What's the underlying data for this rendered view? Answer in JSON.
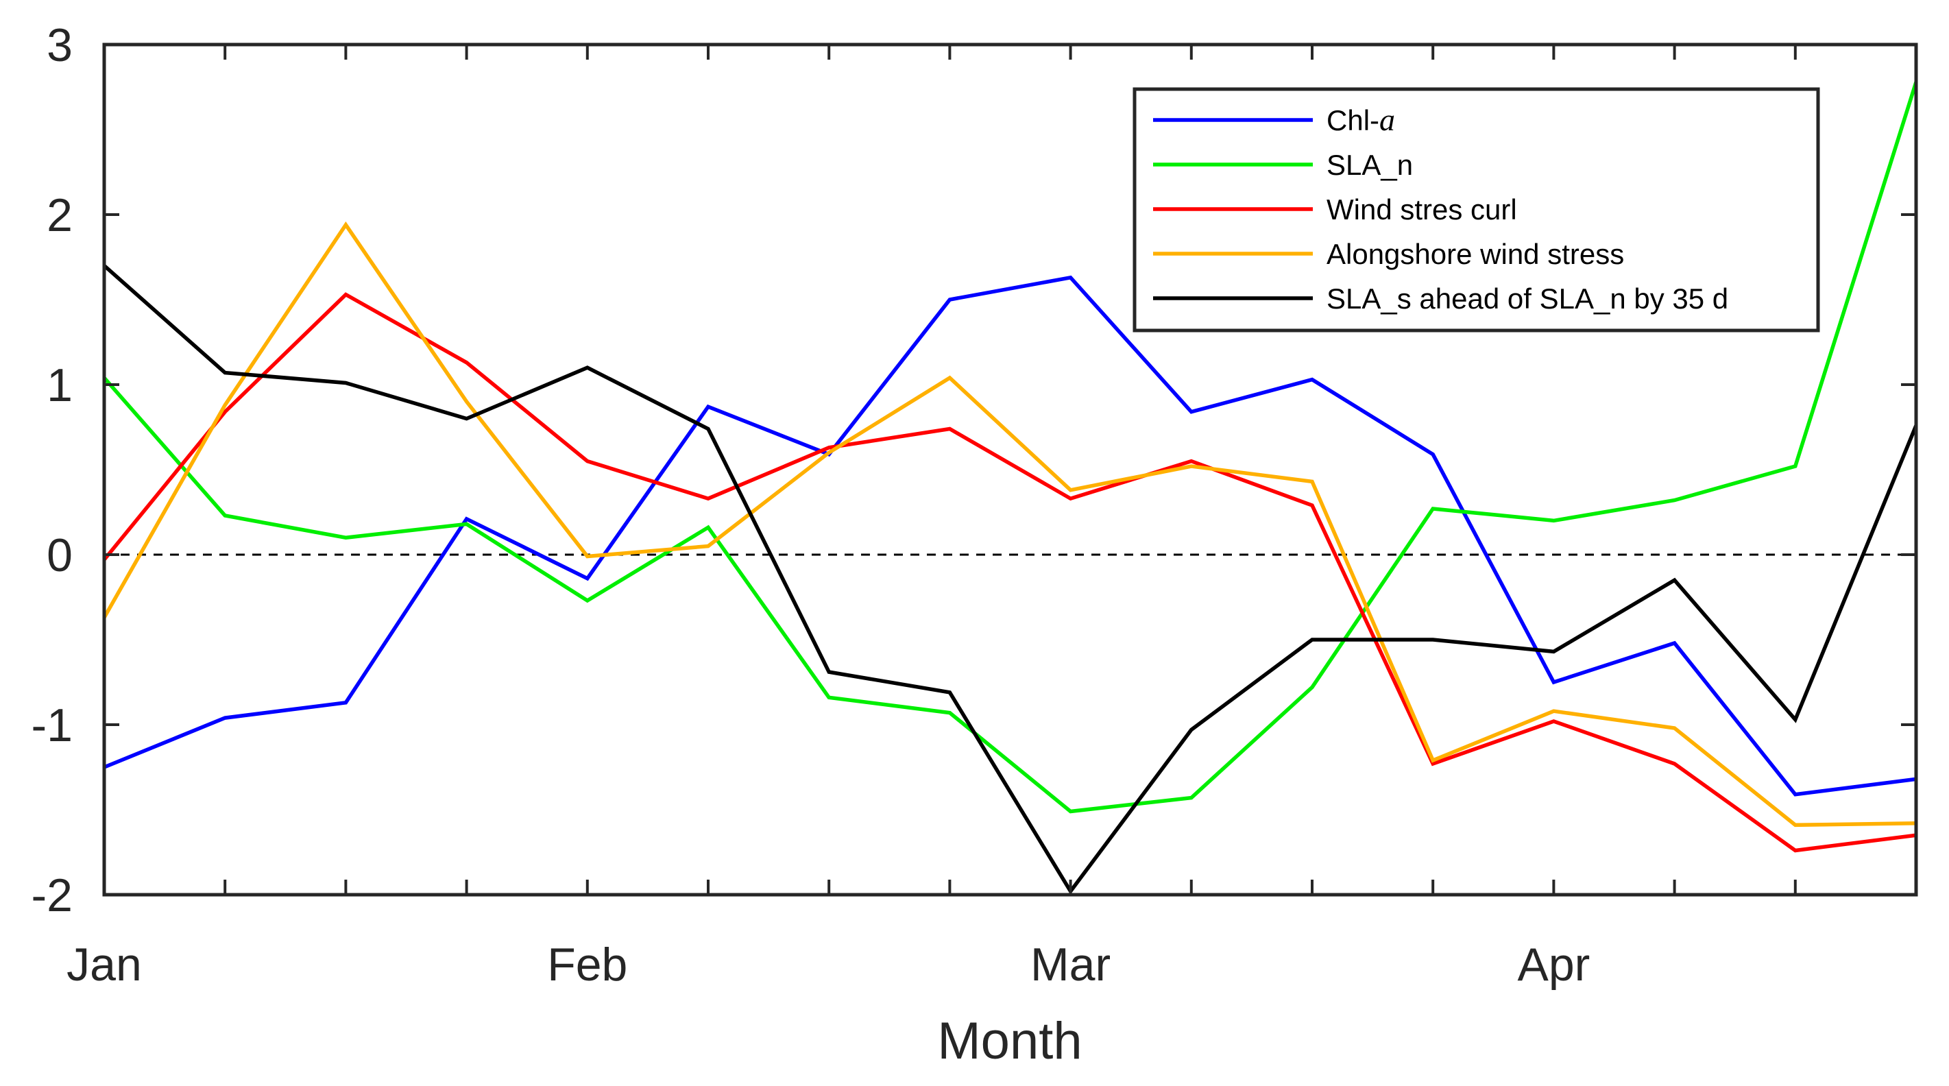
{
  "chart_data": {
    "type": "line",
    "title": "",
    "xlabel": "Month",
    "ylabel": "",
    "x": [
      0,
      1,
      2,
      3,
      4,
      5,
      6,
      7,
      8,
      9,
      10,
      11,
      12,
      13,
      14,
      15
    ],
    "xlim": [
      0,
      15
    ],
    "ylim": [
      -2,
      3
    ],
    "xticks": [
      {
        "x": 0,
        "label": "Jan"
      },
      {
        "x": 4,
        "label": "Feb"
      },
      {
        "x": 8,
        "label": "Mar"
      },
      {
        "x": 12,
        "label": "Apr"
      }
    ],
    "xminor": [
      0,
      1,
      2,
      3,
      4,
      5,
      6,
      7,
      8,
      9,
      10,
      11,
      12,
      13,
      14,
      15
    ],
    "yticks": [
      {
        "y": 3,
        "label": "3"
      },
      {
        "y": 2,
        "label": "2"
      },
      {
        "y": 1,
        "label": "1"
      },
      {
        "y": 0,
        "label": "0"
      },
      {
        "y": -1,
        "label": "-1"
      },
      {
        "y": -2,
        "label": "-2"
      }
    ],
    "zero_line": 0,
    "legend_position": "top-right",
    "series": [
      {
        "name": "Chl-",
        "name_italic": "a",
        "color": "#0000ff",
        "values": [
          -1.25,
          -0.96,
          -0.87,
          0.21,
          -0.14,
          0.87,
          0.59,
          1.5,
          1.63,
          0.84,
          1.03,
          0.59,
          -0.75,
          -0.52,
          -1.41,
          -1.32
        ]
      },
      {
        "name": "SLA_n",
        "color": "#00ee00",
        "values": [
          1.04,
          0.23,
          0.1,
          0.18,
          -0.27,
          0.16,
          -0.84,
          -0.93,
          -1.51,
          -1.43,
          -0.78,
          0.27,
          0.2,
          0.32,
          0.52,
          2.78
        ]
      },
      {
        "name": "Wind stres curl",
        "color": "#ff0000",
        "values": [
          -0.03,
          0.84,
          1.53,
          1.13,
          0.55,
          0.33,
          0.63,
          0.74,
          0.33,
          0.55,
          0.29,
          -1.23,
          -0.98,
          -1.23,
          -1.74,
          -1.65
        ]
      },
      {
        "name": "Alongshore wind stress",
        "color": "#ffb000",
        "values": [
          -0.37,
          0.88,
          1.94,
          0.9,
          -0.01,
          0.05,
          0.6,
          1.04,
          0.38,
          0.52,
          0.43,
          -1.21,
          -0.92,
          -1.02,
          -1.59,
          -1.58
        ]
      },
      {
        "name": "SLA_s ahead of SLA_n by 35 d",
        "color": "#000000",
        "values": [
          1.7,
          1.07,
          1.01,
          0.8,
          1.1,
          0.74,
          -0.69,
          -0.81,
          -1.98,
          -1.03,
          -0.5,
          -0.5,
          -0.57,
          -0.15,
          -0.97,
          0.76
        ]
      }
    ]
  }
}
